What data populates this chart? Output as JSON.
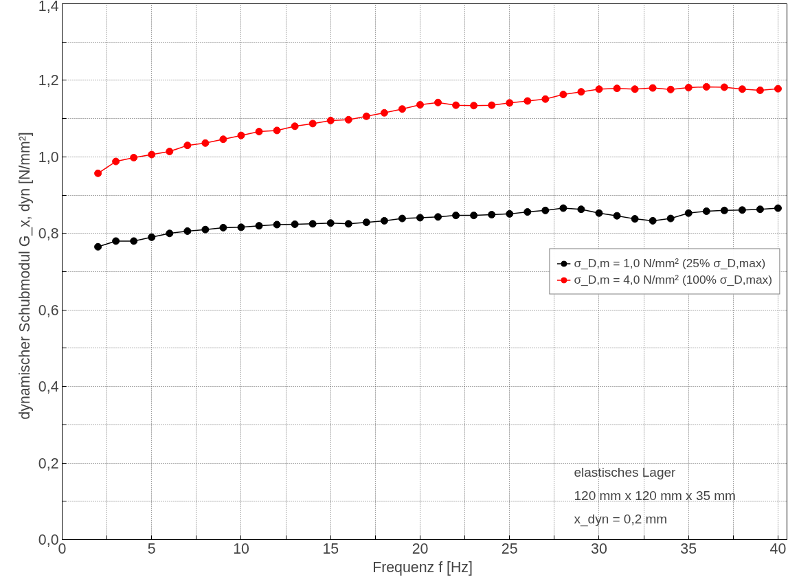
{
  "chart_data": {
    "type": "line",
    "xlabel": "Frequenz f  [Hz]",
    "ylabel": "dynamischer Schubmodul  G_x, dyn  [N/mm²]",
    "x": [
      2,
      3,
      4,
      5,
      6,
      7,
      8,
      9,
      10,
      11,
      12,
      13,
      14,
      15,
      16,
      17,
      18,
      19,
      20,
      21,
      22,
      23,
      24,
      25,
      26,
      27,
      28,
      29,
      30,
      31,
      32,
      33,
      34,
      35,
      36,
      37,
      38,
      39,
      40
    ],
    "series": [
      {
        "name": "σ_D,m = 1,0 N/mm² (25% σ_D,max)",
        "color": "#000000",
        "values": [
          0.765,
          0.78,
          0.78,
          0.79,
          0.8,
          0.806,
          0.81,
          0.815,
          0.816,
          0.82,
          0.823,
          0.824,
          0.825,
          0.827,
          0.825,
          0.829,
          0.833,
          0.839,
          0.841,
          0.843,
          0.847,
          0.847,
          0.849,
          0.851,
          0.856,
          0.86,
          0.866,
          0.863,
          0.853,
          0.846,
          0.838,
          0.833,
          0.839,
          0.853,
          0.858,
          0.86,
          0.861,
          0.863,
          0.866
        ]
      },
      {
        "name": "σ_D,m = 4,0 N/mm² (100% σ_D,max)",
        "color": "#ff0000",
        "values": [
          0.957,
          0.988,
          0.998,
          1.006,
          1.014,
          1.03,
          1.036,
          1.046,
          1.056,
          1.066,
          1.069,
          1.08,
          1.087,
          1.095,
          1.097,
          1.106,
          1.115,
          1.125,
          1.136,
          1.142,
          1.135,
          1.134,
          1.135,
          1.141,
          1.146,
          1.151,
          1.163,
          1.17,
          1.177,
          1.179,
          1.177,
          1.18,
          1.176,
          1.181,
          1.183,
          1.182,
          1.177,
          1.174,
          1.178
        ]
      }
    ],
    "xlim": [
      0,
      40.5
    ],
    "ylim": [
      0,
      1.4
    ],
    "xticks": [
      0,
      {
        "value": 2.5,
        "label": null
      },
      5,
      {
        "value": 7.5,
        "label": null
      },
      10,
      {
        "value": 12.5,
        "label": null
      },
      15,
      {
        "value": 17.5,
        "label": null
      },
      20,
      {
        "value": 22.5,
        "label": null
      },
      25,
      {
        "value": 27.5,
        "label": null
      },
      30,
      {
        "value": 32.5,
        "label": null
      },
      35,
      {
        "value": 37.5,
        "label": null
      },
      40
    ],
    "yticks": [
      {
        "value": 0,
        "label": "0,0"
      },
      {
        "value": 0.1,
        "label": null
      },
      {
        "value": 0.2,
        "label": "0,2"
      },
      {
        "value": 0.3,
        "label": null
      },
      {
        "value": 0.4,
        "label": "0,4"
      },
      {
        "value": 0.5,
        "label": null
      },
      {
        "value": 0.6,
        "label": "0,6"
      },
      {
        "value": 0.7,
        "label": null
      },
      {
        "value": 0.8,
        "label": "0,8"
      },
      {
        "value": 0.9,
        "label": null
      },
      {
        "value": 1.0,
        "label": "1,0"
      },
      {
        "value": 1.1,
        "label": null
      },
      {
        "value": 1.2,
        "label": "1,2"
      },
      {
        "value": 1.3,
        "label": null
      },
      {
        "value": 1.4,
        "label": "1,4"
      }
    ],
    "annotations": [
      "elastisches Lager",
      "120 mm x 120 mm x 35 mm",
      "x_dyn = 0,2 mm"
    ],
    "grid": true,
    "legend": "right",
    "marker": "circle",
    "line_style": "solid"
  }
}
